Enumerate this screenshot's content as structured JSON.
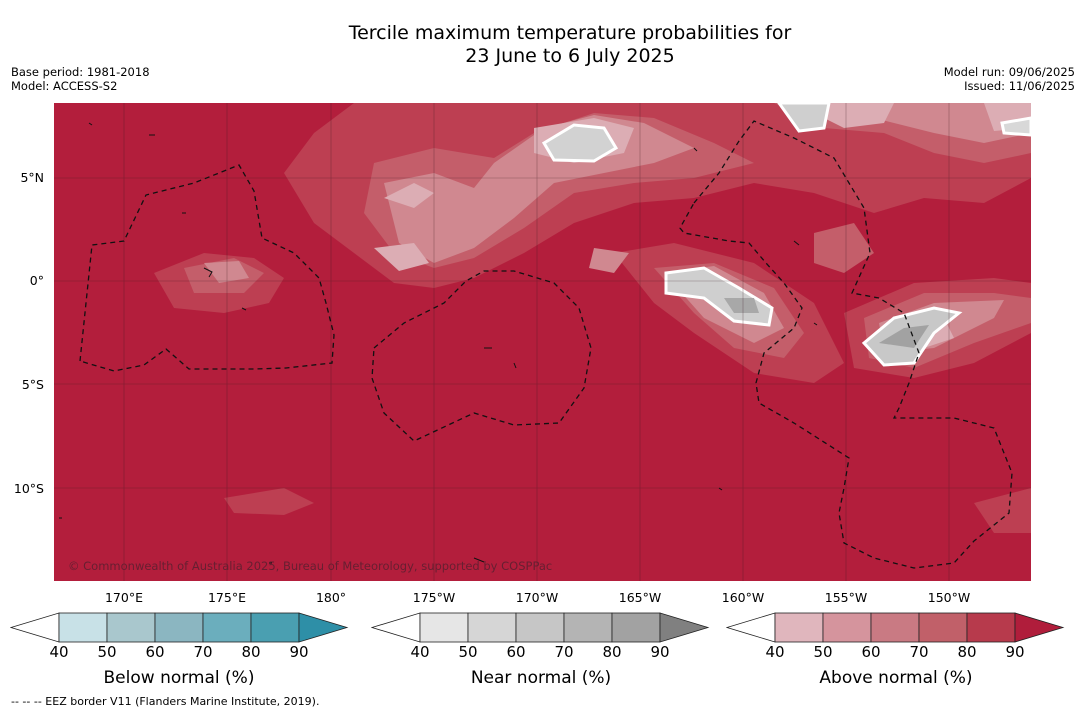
{
  "header": {
    "title_line1": "Tercile maximum temperature probabilities for",
    "title_line2": "23 June to 6 July 2025",
    "base_period": "Base period: 1981-2018",
    "model": "Model: ACCESS-S2",
    "model_run": "Model run: 09/06/2025",
    "issued": "Issued: 11/06/2025"
  },
  "map": {
    "copyright": "© Commonwealth of Australia 2025, Bureau of Meteorology, supported by COSPPac",
    "lat_labels": [
      "5°N",
      "0°",
      "5°S",
      "10°S"
    ],
    "lon_labels": [
      "170°E",
      "175°E",
      "180°",
      "175°W",
      "170°W",
      "165°W",
      "160°W",
      "155°W",
      "150°W"
    ],
    "background_color": "#b31e3c"
  },
  "legends": [
    {
      "title": "Below normal (%)",
      "ticks": [
        "40",
        "50",
        "60",
        "70",
        "80",
        "90"
      ],
      "colors": [
        "#ffffff",
        "#c8e1e7",
        "#a9c7cd",
        "#8bb6c1",
        "#6baebd",
        "#4a9fb1",
        "#2e8fa7"
      ]
    },
    {
      "title": "Near normal (%)",
      "ticks": [
        "40",
        "50",
        "60",
        "70",
        "80",
        "90"
      ],
      "colors": [
        "#ffffff",
        "#e6e6e6",
        "#d6d6d6",
        "#c6c6c6",
        "#b4b4b4",
        "#a2a2a2",
        "#808080"
      ]
    },
    {
      "title": "Above normal (%)",
      "ticks": [
        "40",
        "50",
        "60",
        "70",
        "80",
        "90"
      ],
      "colors": [
        "#ffffff",
        "#e0b6bd",
        "#d5949d",
        "#c97a83",
        "#c16069",
        "#b73a4c",
        "#b01d3b"
      ]
    }
  ],
  "footer": {
    "eez_note": "--  --  -- EEZ border V11 (Flanders Marine Institute, 2019)."
  }
}
